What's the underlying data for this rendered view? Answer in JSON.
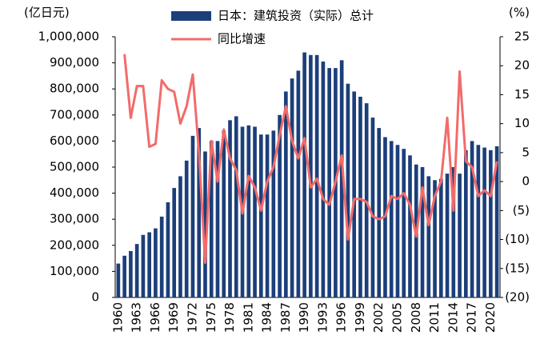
{
  "chart_data": {
    "type": "bar_line",
    "y_label": "(亿日元)",
    "y2_label": "(%)",
    "categories": [
      "1960",
      null,
      null,
      "1963",
      null,
      null,
      "1966",
      null,
      null,
      "1969",
      null,
      null,
      "1972",
      null,
      null,
      "1975",
      null,
      null,
      "1978",
      null,
      null,
      "1981",
      null,
      null,
      "1984",
      null,
      null,
      "1987",
      null,
      null,
      "1990",
      null,
      null,
      "1993",
      null,
      null,
      "1996",
      null,
      null,
      "1999",
      null,
      null,
      "2002",
      null,
      null,
      "2005",
      null,
      null,
      "2008",
      null,
      null,
      "2011",
      null,
      null,
      "2014",
      null,
      null,
      "2017",
      null,
      null,
      "2020",
      null
    ],
    "series": [
      {
        "name": "日本：建筑投资（实际）总计",
        "type": "bar",
        "color": "#1c3f7a",
        "values": [
          130000,
          160000,
          178000,
          205000,
          240000,
          250000,
          265000,
          310000,
          365000,
          420000,
          465000,
          525000,
          620000,
          650000,
          560000,
          600000,
          600000,
          640000,
          680000,
          695000,
          655000,
          660000,
          655000,
          625000,
          625000,
          640000,
          700000,
          790000,
          840000,
          870000,
          940000,
          930000,
          930000,
          905000,
          880000,
          880000,
          910000,
          820000,
          790000,
          770000,
          745000,
          690000,
          650000,
          615000,
          600000,
          585000,
          570000,
          545000,
          510000,
          500000,
          465000,
          450000,
          455000,
          475000,
          500000,
          475000,
          565000,
          600000,
          585000,
          575000,
          565000,
          580000
        ]
      },
      {
        "name": "同比增速",
        "type": "line",
        "axis": "y2",
        "color": "#f26b6b",
        "values": [
          null,
          22,
          11,
          16.5,
          16.5,
          6,
          6.5,
          17.5,
          16,
          15.5,
          10,
          13,
          18.5,
          5,
          -14,
          7,
          0,
          9,
          4,
          2,
          -5.5,
          1,
          -1,
          -5,
          0,
          2.5,
          8,
          13,
          7,
          4,
          7.5,
          -1,
          0.5,
          -3,
          -4,
          0,
          4.5,
          -10,
          -3,
          -3,
          -3.5,
          -6,
          -6.5,
          -6,
          -2.5,
          -3,
          -2,
          -4,
          -9.5,
          -1,
          -7.5,
          -2.5,
          0,
          11,
          -5,
          19,
          3.5,
          2.5,
          -2.5,
          -1.5,
          -2.5,
          3.5
        ]
      }
    ],
    "ylim": [
      0,
      1000000
    ],
    "yticks": [
      0,
      {
        "value": 100000,
        "label": "100,000"
      },
      {
        "value": 200000,
        "label": "200,000"
      },
      {
        "value": 300000,
        "label": "300,000"
      },
      {
        "value": 400000,
        "label": "400,000"
      },
      {
        "value": 500000,
        "label": "500,000"
      },
      {
        "value": 600000,
        "label": "600,000"
      },
      {
        "value": 700000,
        "label": "700,000"
      },
      {
        "value": 800000,
        "label": "800,000"
      },
      {
        "value": 900000,
        "label": "900,000"
      },
      {
        "value": 1000000,
        "label": "1,000,000"
      }
    ],
    "y2lim": [
      -20,
      25
    ],
    "y2ticks": [
      {
        "value": -20,
        "label": "(20)"
      },
      {
        "value": -15,
        "label": "(15)"
      },
      {
        "value": -10,
        "label": "(10)"
      },
      {
        "value": -5,
        "label": "(5)"
      },
      0,
      5,
      10,
      15,
      20,
      25
    ]
  }
}
